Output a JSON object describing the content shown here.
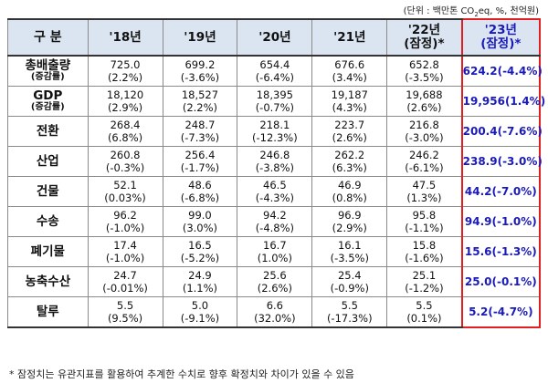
{
  "unit_note": [
    "(단위 : 백만톤 CO",
    "2",
    "eq, %, 천억원)"
  ],
  "headers": [
    "구 분",
    "'18년",
    "'19년",
    "'20년",
    "'21년",
    "'22년",
    "'23년"
  ],
  "header_sub": {
    "y22": "(잠정)*",
    "y23": "(잠정)*"
  },
  "rows": [
    {
      "label": "총배출량",
      "sublabel": "(증감률)",
      "values": [
        "725.0",
        "699.2",
        "654.4",
        "676.6",
        "652.8",
        "624.2"
      ],
      "changes": [
        "(2.2%)",
        "(-3.6%)",
        "(-6.4%)",
        "(3.4%)",
        "(-3.5%)",
        "(-4.4%)"
      ]
    },
    {
      "label": "GDP",
      "sublabel": "(증감률)",
      "values": [
        "18,120",
        "18,527",
        "18,395",
        "19,187",
        "19,688",
        "19,956"
      ],
      "changes": [
        "(2.9%)",
        "(2.2%)",
        "(-0.7%)",
        "(4.3%)",
        "(2.6%)",
        "(1.4%)"
      ]
    },
    {
      "label": "전환",
      "sublabel": "",
      "values": [
        "268.4",
        "248.7",
        "218.1",
        "223.7",
        "216.8",
        "200.4"
      ],
      "changes": [
        "(6.8%)",
        "(-7.3%)",
        "(-12.3%)",
        "(2.6%)",
        "(-3.0%)",
        "(-7.6%)"
      ]
    },
    {
      "label": "산업",
      "sublabel": "",
      "values": [
        "260.8",
        "256.4",
        "246.8",
        "262.2",
        "246.2",
        "238.9"
      ],
      "changes": [
        "(-0.3%)",
        "(-1.7%)",
        "(-3.8%)",
        "(6.3%)",
        "(-6.1%)",
        "(-3.0%)"
      ]
    },
    {
      "label": "건물",
      "sublabel": "",
      "values": [
        "52.1",
        "48.6",
        "46.5",
        "46.9",
        "47.5",
        "44.2"
      ],
      "changes": [
        "(0.03%)",
        "(-6.8%)",
        "(-4.3%)",
        "(0.8%)",
        "(1.3%)",
        "(-7.0%)"
      ]
    },
    {
      "label": "수송",
      "sublabel": "",
      "values": [
        "96.2",
        "99.0",
        "94.2",
        "96.9",
        "95.8",
        "94.9"
      ],
      "changes": [
        "(-1.0%)",
        "(3.0%)",
        "(-4.8%)",
        "(2.9%)",
        "(-1.1%)",
        "(-1.0%)"
      ]
    },
    {
      "label": "폐기물",
      "sublabel": "",
      "values": [
        "17.4",
        "16.5",
        "16.7",
        "16.1",
        "15.8",
        "15.6"
      ],
      "changes": [
        "(-1.0%)",
        "(-5.2%)",
        "(1.0%)",
        "(-3.5%)",
        "(-1.6%)",
        "(-1.3%)"
      ]
    },
    {
      "label": "농축수산",
      "sublabel": "",
      "values": [
        "24.7",
        "24.9",
        "25.6",
        "25.4",
        "25.1",
        "25.0"
      ],
      "changes": [
        "(-0.01%)",
        "(1.1%)",
        "(2.6%)",
        "(-0.9%)",
        "(-1.2%)",
        "(-0.1%)"
      ]
    },
    {
      "label": "탈루",
      "sublabel": "",
      "values": [
        "5.5",
        "5.0",
        "6.6",
        "5.5",
        "5.5",
        "5.2"
      ],
      "changes": [
        "(9.5%)",
        "(-9.1%)",
        "(32.0%)",
        "(-17.3%)",
        "(0.1%)",
        "(-4.7%)"
      ]
    }
  ],
  "footnote": "* 잠정치는 유관지표를 활용하여 추계한 수치로 향후 확정치와 차이가 있을 수 있음",
  "colors": {
    "header_bg": "#dbe5f1",
    "highlight_text": "#1a1ab8",
    "highlight_border": "#e02020"
  }
}
